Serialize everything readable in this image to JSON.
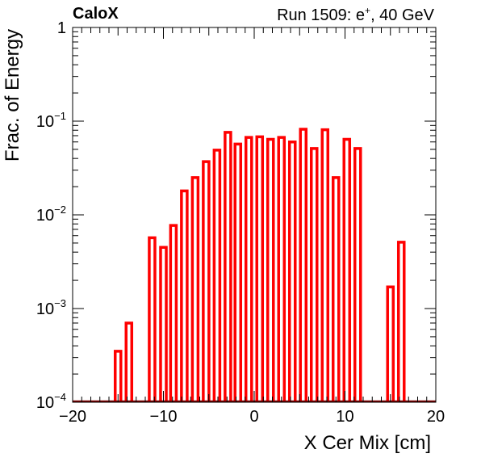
{
  "header": {
    "left_label": "CaloX",
    "right_prefix": "Run 1509: e",
    "right_sup": "+",
    "right_suffix": ", 40 GeV"
  },
  "chart_data": {
    "type": "bar",
    "style": "histogram-outline",
    "xlabel": "X Cer Mix [cm]",
    "ylabel": "Frac. of Energy",
    "xlim": [
      -20,
      20
    ],
    "ylim": [
      0.0001,
      1
    ],
    "yscale": "log",
    "grid": false,
    "legend": "none",
    "bar_color": "#ff0000",
    "baseline_color": "#7a0000",
    "bin_width": 0.625,
    "x_ticks": [
      "−20",
      "−10",
      "0",
      "10",
      "20"
    ],
    "y_ticks": [
      {
        "base": "1",
        "exp": ""
      },
      {
        "base": "10",
        "exp": "−1"
      },
      {
        "base": "10",
        "exp": "−2"
      },
      {
        "base": "10",
        "exp": "−3"
      },
      {
        "base": "10",
        "exp": "−4"
      }
    ],
    "bins": [
      {
        "x": -15.0,
        "y": 0.00035
      },
      {
        "x": -13.8,
        "y": 0.0007
      },
      {
        "x": -11.25,
        "y": 0.0057
      },
      {
        "x": -10.0,
        "y": 0.0045
      },
      {
        "x": -8.9,
        "y": 0.0077
      },
      {
        "x": -7.7,
        "y": 0.018
      },
      {
        "x": -6.5,
        "y": 0.025
      },
      {
        "x": -5.3,
        "y": 0.037
      },
      {
        "x": -4.1,
        "y": 0.049
      },
      {
        "x": -2.9,
        "y": 0.076
      },
      {
        "x": -1.8,
        "y": 0.057
      },
      {
        "x": -0.6,
        "y": 0.067
      },
      {
        "x": 0.6,
        "y": 0.068
      },
      {
        "x": 1.8,
        "y": 0.064
      },
      {
        "x": 3.0,
        "y": 0.067
      },
      {
        "x": 4.2,
        "y": 0.06
      },
      {
        "x": 5.4,
        "y": 0.082
      },
      {
        "x": 6.6,
        "y": 0.051
      },
      {
        "x": 7.8,
        "y": 0.081
      },
      {
        "x": 9.0,
        "y": 0.025
      },
      {
        "x": 10.2,
        "y": 0.064
      },
      {
        "x": 11.4,
        "y": 0.051
      },
      {
        "x": 15.0,
        "y": 0.0017
      },
      {
        "x": 16.2,
        "y": 0.0051
      }
    ]
  }
}
